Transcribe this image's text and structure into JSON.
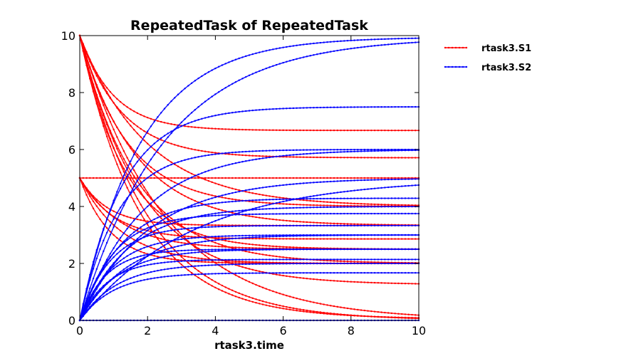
{
  "chart_data": {
    "type": "line",
    "title": "RepeatedTask of RepeatedTask",
    "xlabel": "rtask3.time",
    "ylabel": "",
    "xlim": [
      0,
      10
    ],
    "ylim": [
      0,
      10
    ],
    "xticks": [
      "0",
      "2",
      "4",
      "6",
      "8",
      "10"
    ],
    "yticks": [
      "0",
      "2",
      "4",
      "6",
      "8",
      "10"
    ],
    "grid": false,
    "legend_position": "outside-top-right",
    "series": [
      {
        "name": "rtask3.S1",
        "color": "#ff0000",
        "curves": [
          {
            "start": 10,
            "end": 6.67,
            "rate": 1.0
          },
          {
            "start": 10,
            "end": 5.71,
            "rate": 0.8
          },
          {
            "start": 10,
            "end": 4.0,
            "rate": 0.5
          },
          {
            "start": 10,
            "end": 4.0,
            "rate": 0.7
          },
          {
            "start": 10,
            "end": 3.33,
            "rate": 0.6
          },
          {
            "start": 10,
            "end": 2.5,
            "rate": 0.75
          },
          {
            "start": 10,
            "end": 2.0,
            "rate": 0.6
          },
          {
            "start": 10,
            "end": 1.25,
            "rate": 0.55
          },
          {
            "start": 10,
            "end": 0.05,
            "rate": 0.55
          },
          {
            "start": 10,
            "end": 0.0,
            "rate": 0.5
          },
          {
            "start": 10,
            "end": 0.0,
            "rate": 0.4
          },
          {
            "start": 5,
            "end": 5.0,
            "rate": 1.0
          },
          {
            "start": 5,
            "end": 3.33,
            "rate": 1.2
          },
          {
            "start": 5,
            "end": 2.86,
            "rate": 1.0
          },
          {
            "start": 5,
            "end": 2.5,
            "rate": 0.8
          },
          {
            "start": 5,
            "end": 2.0,
            "rate": 0.8
          },
          {
            "start": 5,
            "end": 2.0,
            "rate": 1.1
          }
        ]
      },
      {
        "name": "rtask3.S2",
        "color": "#0000ff",
        "curves": [
          {
            "start": 0,
            "end": 9.95,
            "rate": 0.55
          },
          {
            "start": 0,
            "end": 9.95,
            "rate": 0.4
          },
          {
            "start": 0,
            "end": 7.5,
            "rate": 0.8
          },
          {
            "start": 0,
            "end": 6.0,
            "rate": 0.9
          },
          {
            "start": 0,
            "end": 6.0,
            "rate": 0.55
          },
          {
            "start": 0,
            "end": 5.0,
            "rate": 0.5
          },
          {
            "start": 0,
            "end": 5.0,
            "rate": 0.3
          },
          {
            "start": 0,
            "end": 4.29,
            "rate": 0.8
          },
          {
            "start": 0,
            "end": 4.0,
            "rate": 0.7
          },
          {
            "start": 0,
            "end": 3.75,
            "rate": 1.0
          },
          {
            "start": 0,
            "end": 3.33,
            "rate": 1.1
          },
          {
            "start": 0,
            "end": 3.0,
            "rate": 1.0
          },
          {
            "start": 0,
            "end": 3.0,
            "rate": 0.7
          },
          {
            "start": 0,
            "end": 2.5,
            "rate": 1.3
          },
          {
            "start": 0,
            "end": 2.5,
            "rate": 0.9
          },
          {
            "start": 0,
            "end": 2.14,
            "rate": 1.2
          },
          {
            "start": 0,
            "end": 2.0,
            "rate": 0.9
          },
          {
            "start": 0,
            "end": 1.67,
            "rate": 1.0
          },
          {
            "start": 0,
            "end": 0.0,
            "rate": 1.0
          }
        ]
      }
    ]
  }
}
